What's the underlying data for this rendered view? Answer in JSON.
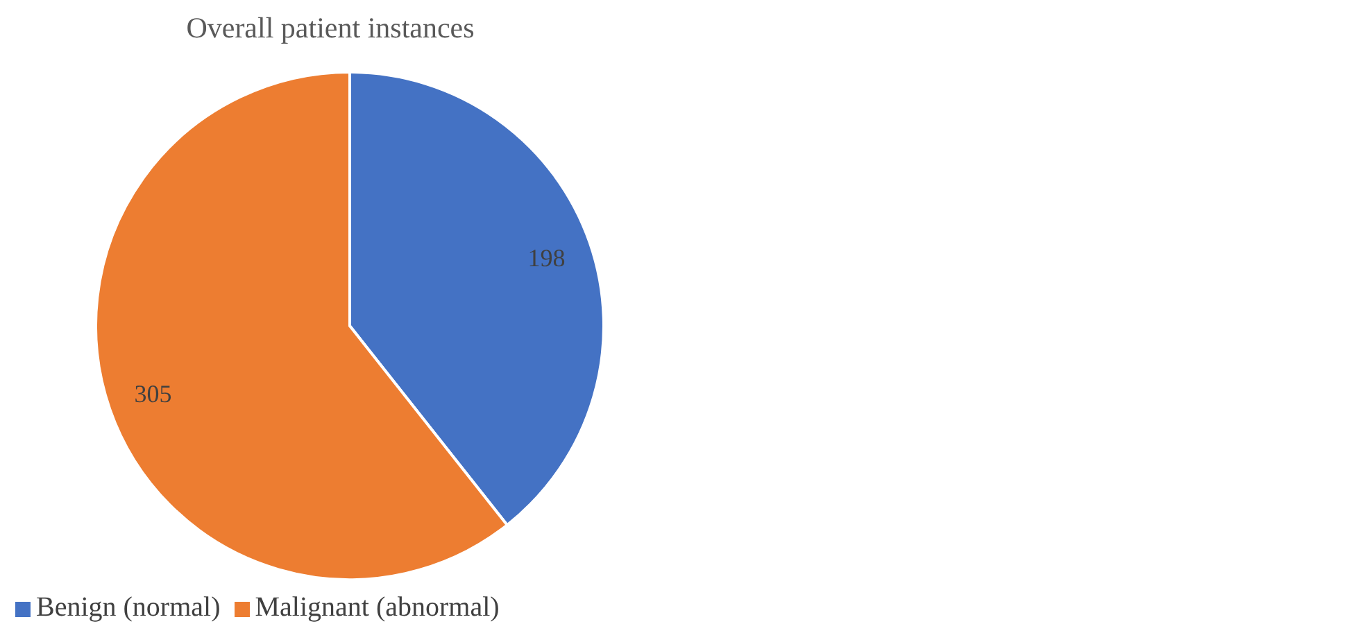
{
  "chart_data": {
    "type": "pie",
    "title": "Overall patient instances",
    "categories": [
      "Benign (normal)",
      "Malignant (abnormal)"
    ],
    "values": [
      198,
      305
    ],
    "colors": [
      "#4472c4",
      "#ed7d31"
    ],
    "data_labels": true,
    "legend": "bottom left"
  }
}
